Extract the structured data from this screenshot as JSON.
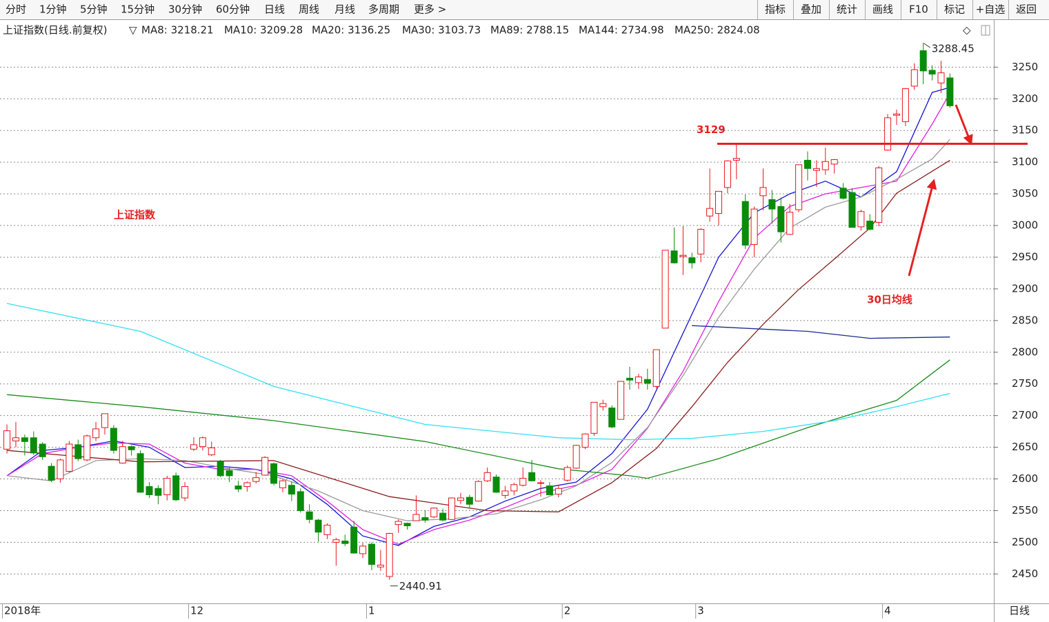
{
  "toolbar": {
    "tabs": [
      "分时",
      "1分钟",
      "5分钟",
      "15分钟",
      "30分钟",
      "60分钟",
      "日线",
      "周线",
      "月线",
      "多周期",
      "更多 >"
    ],
    "active": 6,
    "buttons": [
      "指标",
      "叠加",
      "统计",
      "画线",
      "F10",
      "标记",
      "+自选",
      "返回"
    ]
  },
  "footer": {
    "period": "日线"
  },
  "chart_data": {
    "type": "candlestick",
    "title": "上证指数(日线.前复权)",
    "categories": [
      "2018年",
      null,
      null,
      null,
      null,
      null,
      null,
      null,
      null,
      null,
      null,
      null,
      null,
      null,
      null,
      null,
      null,
      null,
      null,
      null,
      null,
      "12",
      null,
      null,
      null,
      null,
      null,
      null,
      null,
      null,
      null,
      null,
      null,
      null,
      null,
      null,
      null,
      null,
      null,
      null,
      null,
      "1",
      null,
      null,
      null,
      null,
      null,
      null,
      null,
      null,
      null,
      null,
      null,
      null,
      null,
      null,
      null,
      null,
      null,
      null,
      null,
      null,
      null,
      "2",
      null,
      null,
      null,
      null,
      null,
      null,
      null,
      null,
      null,
      null,
      null,
      null,
      null,
      null,
      "3",
      null,
      null,
      null,
      null,
      null,
      null,
      null,
      null,
      null,
      null,
      null,
      null,
      null,
      null,
      null,
      null,
      null,
      null,
      null,
      null,
      "4",
      null,
      null,
      null,
      null,
      null,
      null,
      null
    ],
    "open": [
      2647,
      2660,
      2665,
      2665,
      2655,
      2620,
      2600,
      2612,
      2654,
      2630,
      2665,
      2681,
      2680,
      2625,
      2651,
      2640,
      2588,
      2585,
      2575,
      2605,
      2570,
      2647,
      2651,
      2638,
      2628,
      2613,
      2589,
      2588,
      2596,
      2606,
      2624,
      2586,
      2590,
      2580,
      2548,
      2535,
      2512,
      2500,
      2502,
      2524,
      2482,
      2497,
      2461,
      2446,
      2528,
      2530,
      2534,
      2539,
      2540,
      2546,
      2536,
      2566,
      2571,
      2565,
      2597,
      2603,
      2574,
      2581,
      2590,
      2610,
      2594,
      2589,
      2576,
      2598,
      2617,
      2650,
      2672,
      2714,
      2712,
      2694,
      2759,
      2752,
      2757,
      2746,
      2838,
      2960,
      2951,
      2949,
      2955,
      3015,
      3019,
      3060,
      3103,
      3038,
      2970,
      3047,
      3041,
      3030,
      2986,
      3025,
      3103,
      3087,
      3088,
      3097,
      3059,
      3052,
      2998,
      3007,
      3005,
      3119,
      3174,
      3164,
      3220,
      3276,
      3245,
      3225,
      3233
    ],
    "high": [
      2686,
      2690,
      2670,
      2675,
      2658,
      2625,
      2632,
      2660,
      2662,
      2670,
      2690,
      2703,
      2685,
      2660,
      2653,
      2645,
      2595,
      2590,
      2605,
      2610,
      2595,
      2666,
      2667,
      2659,
      2630,
      2619,
      2597,
      2596,
      2611,
      2636,
      2626,
      2600,
      2596,
      2585,
      2560,
      2537,
      2530,
      2507,
      2512,
      2534,
      2499,
      2500,
      2488,
      2515,
      2536,
      2531,
      2574,
      2551,
      2555,
      2553,
      2571,
      2578,
      2575,
      2598,
      2618,
      2607,
      2589,
      2594,
      2618,
      2630,
      2598,
      2595,
      2591,
      2621,
      2654,
      2672,
      2721,
      2725,
      2716,
      2754,
      2777,
      2766,
      2774,
      2804,
      2961,
      2997,
      2999,
      2957,
      2996,
      3090,
      3054,
      3103,
      3129,
      3049,
      3030,
      3090,
      3056,
      3044,
      3034,
      3096,
      3117,
      3103,
      3123,
      3105,
      3067,
      3059,
      3025,
      3018,
      3094,
      3176,
      3183,
      3217,
      3256,
      3288.45,
      3253,
      3260,
      3240
    ],
    "low": [
      2640,
      2650,
      2637,
      2638,
      2630,
      2595,
      2594,
      2610,
      2628,
      2628,
      2660,
      2670,
      2640,
      2624,
      2637,
      2578,
      2570,
      2560,
      2566,
      2565,
      2565,
      2644,
      2645,
      2636,
      2603,
      2595,
      2579,
      2580,
      2593,
      2605,
      2590,
      2579,
      2565,
      2547,
      2530,
      2501,
      2505,
      2463,
      2494,
      2482,
      2475,
      2456,
      2455,
      2440.91,
      2515,
      2520,
      2534,
      2531,
      2538,
      2533,
      2535,
      2560,
      2553,
      2564,
      2595,
      2578,
      2569,
      2574,
      2588,
      2596,
      2572,
      2574,
      2571,
      2596,
      2616,
      2647,
      2668,
      2708,
      2680,
      2694,
      2741,
      2742,
      2741,
      2743,
      2838,
      2940,
      2922,
      2932,
      2942,
      3006,
      3000,
      3051,
      3073,
      2963,
      2950,
      3024,
      3003,
      2973,
      2985,
      3021,
      3071,
      3061,
      3080,
      3082,
      3041,
      2997,
      2992,
      2992,
      2999,
      3118,
      3159,
      3157,
      3214,
      3223,
      3229,
      3209,
      3186
    ],
    "close": [
      2676,
      2665,
      2659,
      2641,
      2635,
      2598,
      2630,
      2655,
      2632,
      2668,
      2679,
      2703,
      2645,
      2651,
      2646,
      2579,
      2575,
      2574,
      2601,
      2567,
      2588,
      2654,
      2665,
      2649,
      2605,
      2605,
      2584,
      2594,
      2602,
      2634,
      2593,
      2597,
      2576,
      2550,
      2536,
      2516,
      2527,
      2504,
      2498,
      2483,
      2494,
      2465,
      2464,
      2514,
      2533,
      2526,
      2544,
      2535,
      2554,
      2535,
      2570,
      2570,
      2560,
      2596,
      2610,
      2579,
      2581,
      2591,
      2601,
      2597,
      2594,
      2575,
      2585,
      2618,
      2653,
      2671,
      2721,
      2719,
      2682,
      2754,
      2756,
      2761,
      2751,
      2804,
      2961,
      2941,
      2953,
      2941,
      2994,
      3027,
      3054,
      3102,
      3106,
      2969,
      3026,
      3060,
      3026,
      2990,
      3021,
      3096,
      3090,
      3090,
      3101,
      3104,
      3043,
      2997,
      3022,
      2994,
      3091,
      3170,
      3176,
      3216,
      3246,
      3244,
      3239,
      3241,
      3189
    ],
    "color_up": "#e8141b",
    "color_down": "#0a8c0a",
    "xlim": [
      -0.78,
      110.93
    ],
    "ylim": [
      2409,
      3295
    ],
    "yticks": [
      2450,
      2500,
      2550,
      2600,
      2650,
      2700,
      2750,
      2800,
      2850,
      2900,
      2950,
      3000,
      3050,
      3100,
      3150,
      3200,
      3250
    ],
    "grid": true,
    "lines": [
      {
        "name": "MA8: 3218.21",
        "color": "#1414d2",
        "x": [
          0,
          4,
          8,
          12,
          16,
          20,
          24,
          28,
          32,
          36,
          40,
          44,
          48,
          52,
          56,
          60,
          64,
          68,
          72,
          76,
          80,
          84,
          88,
          92,
          96,
          100,
          104,
          106
        ],
        "values": [
          2605,
          2645,
          2650,
          2660,
          2650,
          2618,
          2620,
          2615,
          2600,
          2560,
          2510,
          2495,
          2525,
          2540,
          2565,
          2585,
          2595,
          2640,
          2710,
          2830,
          2950,
          3020,
          3050,
          3070,
          3045,
          3085,
          3210,
          3218
        ]
      },
      {
        "name": "MA10: 3209.28",
        "color": "#e020e0",
        "x": [
          0,
          4,
          8,
          12,
          16,
          20,
          24,
          28,
          32,
          36,
          40,
          44,
          48,
          52,
          56,
          60,
          64,
          68,
          72,
          76,
          80,
          84,
          88,
          92,
          96,
          100,
          104,
          106
        ],
        "values": [
          2605,
          2640,
          2650,
          2657,
          2655,
          2625,
          2615,
          2615,
          2605,
          2565,
          2520,
          2497,
          2520,
          2535,
          2555,
          2578,
          2590,
          2615,
          2680,
          2770,
          2880,
          2980,
          3030,
          3050,
          3060,
          3070,
          3160,
          3209
        ]
      },
      {
        "name": "MA20: 3136.25",
        "color": "#9a9a9a",
        "x": [
          0,
          5,
          10,
          15,
          20,
          25,
          30,
          35,
          40,
          45,
          50,
          55,
          60,
          64,
          68,
          72,
          76,
          80,
          84,
          88,
          92,
          96,
          100,
          104,
          106
        ],
        "values": [
          2605,
          2597,
          2629,
          2632,
          2629,
          2616,
          2605,
          2581,
          2550,
          2534,
          2537,
          2545,
          2567,
          2589,
          2626,
          2681,
          2763,
          2855,
          2931,
          2996,
          3029,
          3045,
          3073,
          3105,
          3136
        ]
      },
      {
        "name": "MA30: 3103.73",
        "color": "#8b1a1a",
        "x": [
          0,
          15,
          30,
          43,
          54,
          62,
          68,
          73,
          77,
          81,
          85,
          89,
          93,
          97,
          100,
          106
        ],
        "values": [
          2645,
          2627,
          2629,
          2572,
          2550,
          2548,
          2594,
          2648,
          2714,
          2784,
          2844,
          2899,
          2947,
          2996,
          3051,
          3103
        ]
      },
      {
        "name": "MA89: 2788.15",
        "color": "#1a8a1a",
        "x": [
          0,
          15,
          30,
          47,
          62,
          70,
          72,
          80,
          90,
          100,
          106
        ],
        "values": [
          2733,
          2714,
          2692,
          2659,
          2616,
          2605,
          2601,
          2632,
          2681,
          2724,
          2788
        ]
      },
      {
        "name": "MA144: 2734.98",
        "color": "#30e0f0",
        "x": [
          0,
          15,
          30,
          47,
          62,
          70,
          77,
          85,
          93,
          100,
          106
        ],
        "values": [
          2877,
          2833,
          2746,
          2686,
          2665,
          2662,
          2664,
          2675,
          2692,
          2714,
          2735
        ]
      },
      {
        "name": "MA250: 2824.08",
        "color": "#1a2a90",
        "x": [
          77,
          90,
          97,
          106
        ],
        "values": [
          2842,
          2833,
          2822,
          2824
        ]
      }
    ],
    "levels": [
      {
        "value": 3129
      }
    ],
    "notes": [
      "上证指数",
      "30日均线"
    ]
  }
}
